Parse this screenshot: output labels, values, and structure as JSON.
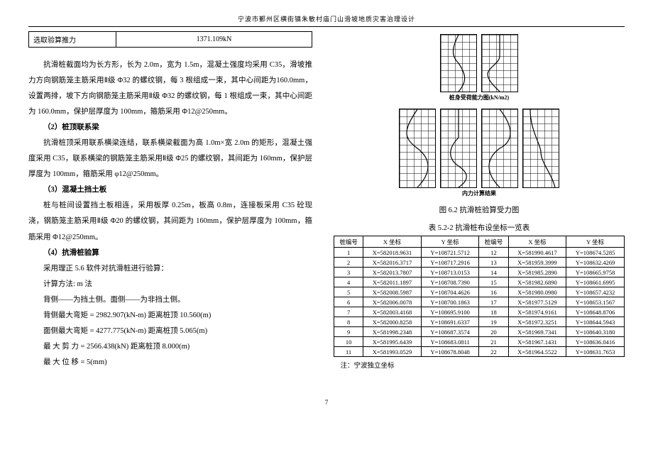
{
  "header": {
    "title": "宁波市鄞州区横街镇朱敏村庙门山滑坡地质灾害治理设计"
  },
  "intro_table": {
    "label": "选取验算推力",
    "value": "1371.109kN"
  },
  "paragraphs": {
    "p1": "抗滑桩截面均为长方形，长为 2.0m，宽为 1.5m，混凝土强度均采用 C35，滑坡推力方向钢筋笼主筋采用Ⅱ级 Φ32 的螺纹钢，每 3 根组成一束，其中心间距为160.0mm，设置两排，坡下方向钢筋笼主筋采用Ⅱ级 Φ32 的螺纹钢，每 1 根组成一束，其中心间距为 160.0mm，保护层厚度为 100mm，箍筋采用 Φ12@250mm。",
    "h2": "（2）桩顶联系梁",
    "p2": "抗滑桩顶采用联系横梁连结，联系横梁截面为高 1.0m×宽 2.0m 的矩形，混凝土强度采用 C35，联系横梁的钢筋笼主筋采用Ⅱ级 Φ25 的螺纹钢，其间距为 160mm，保护层厚度为 100mm，箍筋采用 φ12@250mm。",
    "h3": "（3）混凝土挡土板",
    "p3": "桩与桩间设置挡土板相连，采用板厚 0.25m，板高 0.8m，连接板采用 C35 砼现浇，钢筋笼主筋采用Ⅱ级 Φ20 的螺纹钢，其间距为 160mm，保护层厚度为 100mm，箍筋采用 Φ12@250mm。",
    "h4": "（4）抗滑桩验算",
    "p4a": "采用理正 5.6 软件对抗滑桩进行验算：",
    "p4b": "计算方法: m 法",
    "p4c": "背侧——为挡土侧。面侧——为非挡土侧。",
    "p4d": "背侧最大弯矩 = 2982.907(kN-m)  距离桩顶 10.560(m)",
    "p4e": "面侧最大弯矩 = 4277.775(kN-m) 距离桩顶 5.065(m)",
    "p4f": "最  大   剪   力 = 2566.438(kN)        距离桩顶  8.000(m)",
    "p4g": "最   大    位   移 = 5(mm)"
  },
  "graphs": {
    "top_caption": "桩身受荷能力图(kN/m2)",
    "bot_caption": "内力计算结果",
    "fig_caption": "图 6.2  抗滑桩验算受力图"
  },
  "coord_table": {
    "caption": "表 5.2-2   抗滑桩布设坐标一览表",
    "headers": [
      "桩编号",
      "X 坐标",
      "Y 坐标",
      "桩编号",
      "X 坐标",
      "Y 坐标"
    ],
    "rows": [
      [
        "1",
        "X=582018.9631",
        "Y=108721.5712",
        "12",
        "X=581990.4617",
        "Y=108674.5285"
      ],
      [
        "2",
        "X=582016.3717",
        "Y=108717.2916",
        "13",
        "X=581959.3999",
        "Y=108632.4269"
      ],
      [
        "3",
        "X=582013.7807",
        "Y=108713.0153",
        "14",
        "X=581985.2890",
        "Y=108665.9758"
      ],
      [
        "4",
        "X=582011.1897",
        "Y=108708.7390",
        "15",
        "X=581982.6890",
        "Y=108661.6995"
      ],
      [
        "5",
        "X=582008.5987",
        "Y=108704.4626",
        "16",
        "X=581980.0980",
        "Y=108657.4232"
      ],
      [
        "6",
        "X=582006.0078",
        "Y=108700.1863",
        "17",
        "X=581977.5129",
        "Y=108653.1567"
      ],
      [
        "7",
        "X=582003.4168",
        "Y=108695.9100",
        "18",
        "X=581974.9161",
        "Y=108648.8706"
      ],
      [
        "8",
        "X=582000.8258",
        "Y=108691.6337",
        "19",
        "X=581972.3251",
        "Y=108644.5943"
      ],
      [
        "9",
        "X=581998.2348",
        "Y=108687.3574",
        "20",
        "X=581969.7341",
        "Y=108640.3180"
      ],
      [
        "10",
        "X=581995.6439",
        "Y=108683.0811",
        "21",
        "X=581967.1431",
        "Y=108636.0416"
      ],
      [
        "11",
        "X=581993.0529",
        "Y=108678.8048",
        "22",
        "X=581964.5522",
        "Y=108631.7653"
      ]
    ],
    "note": "注：宁波独立坐标"
  },
  "page_number": "7"
}
